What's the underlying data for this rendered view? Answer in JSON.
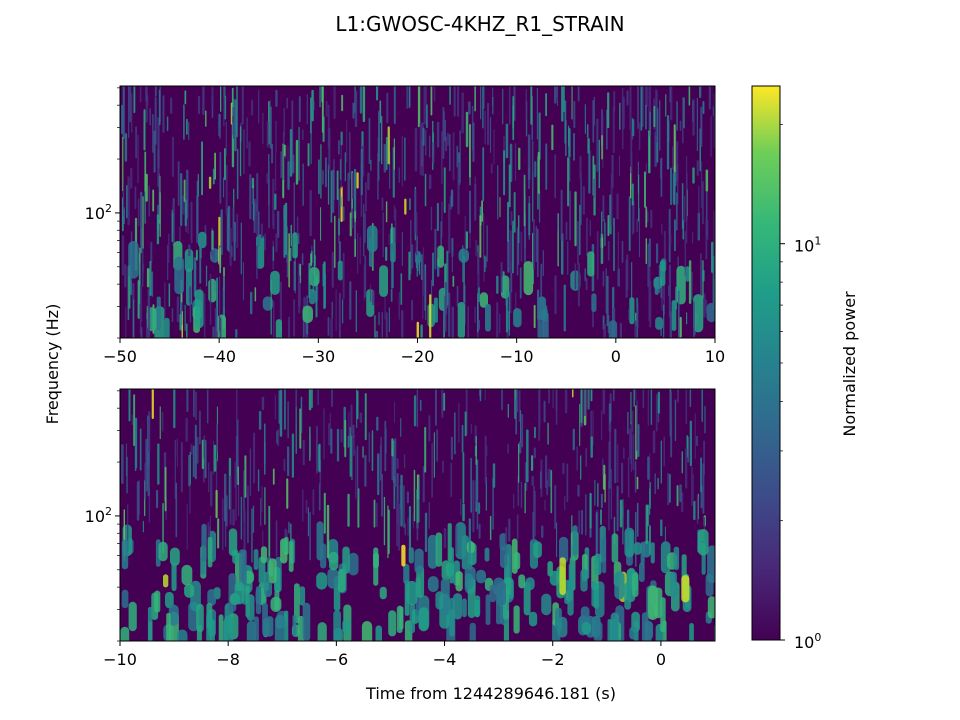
{
  "chart_data": {
    "type": "heatmap",
    "title": "L1:GWOSC-4KHZ_R1_STRAIN",
    "ylabel": "Frequency (Hz)",
    "xlabel": "Time from 1244289646.181 (s)",
    "panels": [
      {
        "xlim": [
          -50,
          10
        ],
        "ylim": [
          20,
          512
        ],
        "yscale": "log",
        "xticks": [
          -50,
          -40,
          -30,
          -20,
          -10,
          0,
          10
        ],
        "xtick_labels": [
          "−50",
          "−40",
          "−30",
          "−20",
          "−10",
          "0",
          "10"
        ],
        "ytick_value": 100,
        "ytick_label_base": "10",
        "ytick_label_exp": "2",
        "low_freq_emphasis": 0.15
      },
      {
        "xlim": [
          -10,
          1
        ],
        "ylim": [
          20,
          512
        ],
        "yscale": "log",
        "xticks": [
          -10,
          -8,
          -6,
          -4,
          -2,
          0
        ],
        "xtick_labels": [
          "−10",
          "−8",
          "−6",
          "−4",
          "−2",
          "0"
        ],
        "ytick_value": 100,
        "ytick_label_base": "10",
        "ytick_label_exp": "2",
        "low_freq_emphasis": 1.0
      }
    ],
    "colorbar": {
      "label": "Normalized power",
      "scale": "log",
      "range": [
        1,
        25
      ],
      "colormap": "viridis",
      "ticks": [
        {
          "value": 1,
          "base": "10",
          "exp": "0"
        },
        {
          "value": 10,
          "base": "10",
          "exp": "1"
        }
      ]
    }
  }
}
